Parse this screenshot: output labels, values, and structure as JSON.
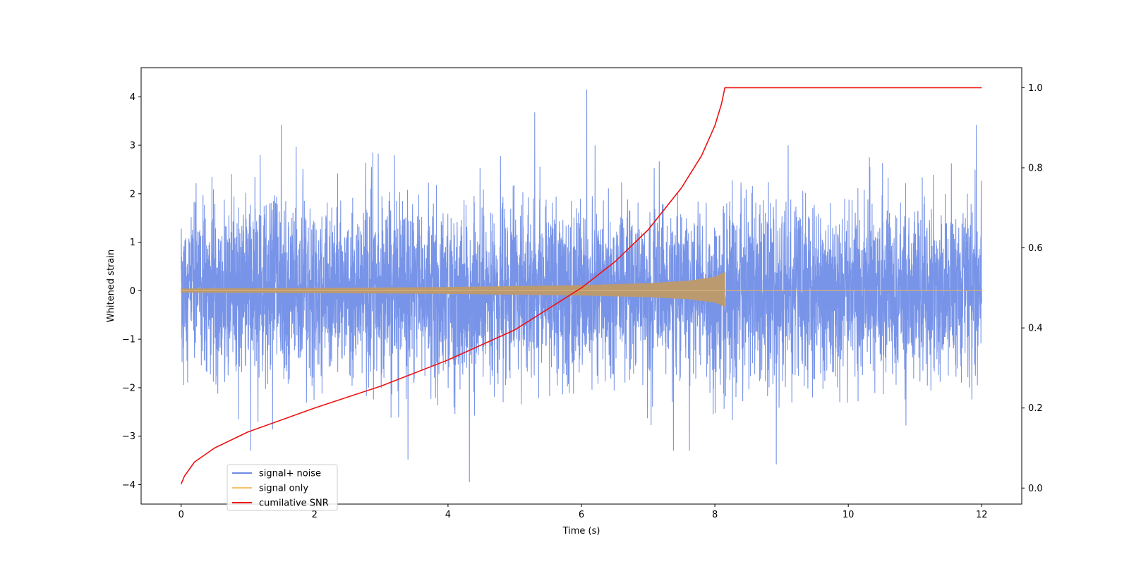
{
  "chart_data": {
    "type": "line",
    "title": "",
    "xlabel": "Time (s)",
    "ylabel": "Whitened strain",
    "y2label": "",
    "xlim": [
      -0.6,
      12.6
    ],
    "ylim": [
      -4.4,
      4.6
    ],
    "y2lim": [
      -0.04,
      1.05
    ],
    "xticks": [
      0,
      2,
      4,
      6,
      8,
      10,
      12
    ],
    "yticks": [
      -4,
      -3,
      -2,
      -1,
      0,
      1,
      2,
      3,
      4
    ],
    "y2ticks": [
      0.0,
      0.2,
      0.4,
      0.6,
      0.8,
      1.0
    ],
    "y2tick_labels": [
      "0.0",
      "0.2",
      "0.4",
      "0.6",
      "0.8",
      "1.0"
    ],
    "ytick_labels": [
      "−4",
      "−3",
      "−2",
      "−1",
      "0",
      "1",
      "2",
      "3",
      "4"
    ],
    "grid": false,
    "legend_position": "bottom-left",
    "series": [
      {
        "name": "signal+ noise",
        "color": "#6d8be6",
        "axis": "left",
        "x_range": [
          0,
          12
        ],
        "noise_sigma": 0.9,
        "peaks": [
          [
            6.08,
            4.15
          ],
          [
            4.32,
            -3.95
          ],
          [
            8.92,
            -3.58
          ],
          [
            11.92,
            3.42
          ],
          [
            5.3,
            3.68
          ],
          [
            3.4,
            -3.48
          ],
          [
            1.5,
            3.42
          ]
        ]
      },
      {
        "name": "signal only",
        "color": "#f5c16b",
        "axis": "left",
        "x_range": [
          0,
          12
        ],
        "merger_time": 8.15,
        "envelope": [
          [
            0,
            0.04
          ],
          [
            2,
            0.05
          ],
          [
            4,
            0.07
          ],
          [
            6,
            0.11
          ],
          [
            7,
            0.15
          ],
          [
            7.6,
            0.2
          ],
          [
            8.0,
            0.28
          ],
          [
            8.15,
            0.38
          ]
        ]
      },
      {
        "name": "cumilative SNR",
        "color": "#ee1111",
        "axis": "right",
        "x": [
          0,
          0.05,
          0.2,
          0.5,
          1,
          2,
          3,
          4,
          5,
          6,
          6.5,
          7,
          7.5,
          7.8,
          8.0,
          8.1,
          8.15,
          12
        ],
        "y": [
          0.01,
          0.03,
          0.065,
          0.1,
          0.14,
          0.2,
          0.255,
          0.32,
          0.395,
          0.5,
          0.565,
          0.645,
          0.75,
          0.83,
          0.905,
          0.96,
          1.0,
          1.0
        ]
      }
    ]
  }
}
